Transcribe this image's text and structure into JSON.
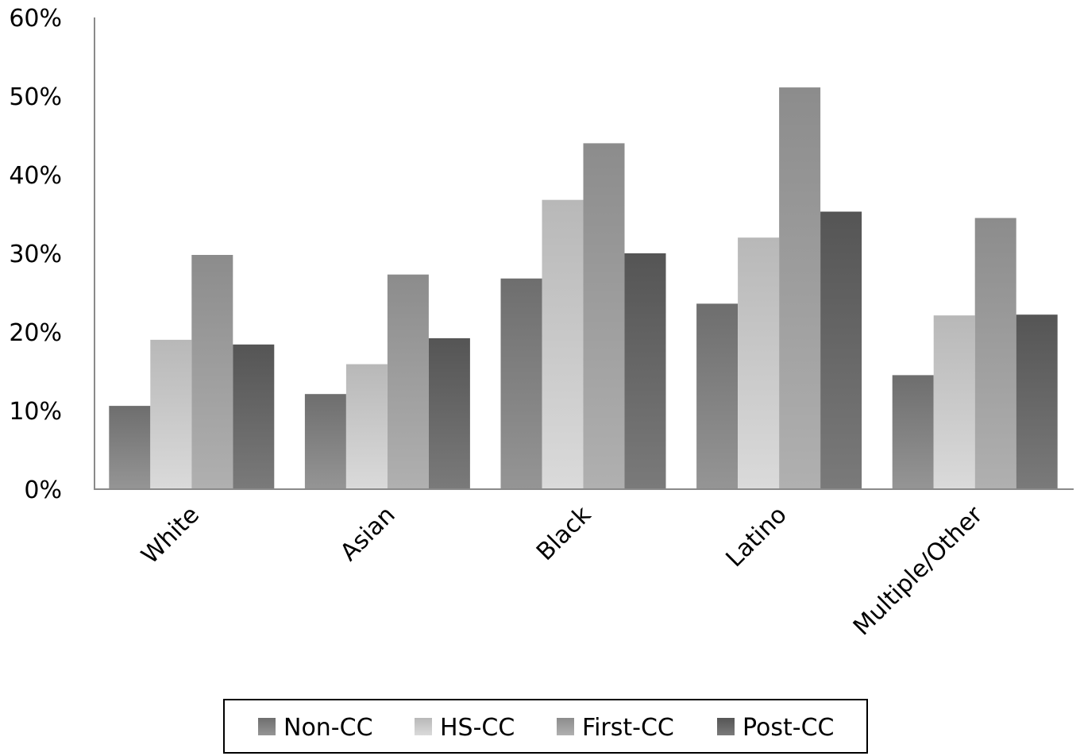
{
  "chart_data": {
    "type": "bar",
    "title": "",
    "xlabel": "",
    "ylabel": "",
    "ylim": [
      0,
      60
    ],
    "yticks": [
      "0%",
      "10%",
      "20%",
      "30%",
      "40%",
      "50%",
      "60%"
    ],
    "grid": false,
    "legend_position": "bottom",
    "categories": [
      "White",
      "Asian",
      "Black",
      "Latino",
      "Multiple/Other"
    ],
    "series": [
      {
        "name": "Non-CC",
        "values": [
          10.6,
          12.1,
          26.8,
          23.6,
          14.5
        ]
      },
      {
        "name": "HS-CC",
        "values": [
          19.0,
          15.9,
          36.8,
          32.0,
          22.1
        ]
      },
      {
        "name": "First-CC",
        "values": [
          29.8,
          27.3,
          44.0,
          51.1,
          34.5
        ]
      },
      {
        "name": "Post-CC",
        "values": [
          18.4,
          19.2,
          30.0,
          35.3,
          22.2
        ]
      }
    ],
    "colors": {
      "Non-CC": [
        "#6e6e6e",
        "#959595"
      ],
      "HS-CC": [
        "#b8b8b8",
        "#dadada"
      ],
      "First-CC": [
        "#8c8c8c",
        "#b0b0b0"
      ],
      "Post-CC": [
        "#555555",
        "#7a7a7a"
      ]
    }
  }
}
